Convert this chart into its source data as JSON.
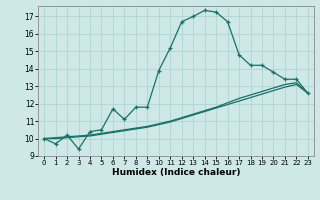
{
  "xlabel": "Humidex (Indice chaleur)",
  "background_color": "#cde8e6",
  "grid_color": "#b0d4d0",
  "line_color": "#1a7068",
  "xlim": [
    -0.5,
    23.5
  ],
  "ylim": [
    9,
    17.6
  ],
  "xticks": [
    0,
    1,
    2,
    3,
    4,
    5,
    6,
    7,
    8,
    9,
    10,
    11,
    12,
    13,
    14,
    15,
    16,
    17,
    18,
    19,
    20,
    21,
    22,
    23
  ],
  "yticks": [
    9,
    10,
    11,
    12,
    13,
    14,
    15,
    16,
    17
  ],
  "line1_x": [
    0,
    1,
    2,
    3,
    4,
    5,
    6,
    7,
    8,
    9,
    10,
    11,
    12,
    13,
    14,
    15,
    16,
    17,
    18,
    19,
    20,
    21,
    22,
    23
  ],
  "line1_y": [
    10.0,
    9.7,
    10.2,
    9.4,
    10.4,
    10.5,
    11.7,
    11.1,
    11.8,
    11.8,
    13.9,
    15.2,
    16.7,
    17.0,
    17.35,
    17.25,
    16.7,
    14.8,
    14.2,
    14.2,
    13.8,
    13.4,
    13.4,
    12.6
  ],
  "line2_x": [
    0,
    1,
    2,
    3,
    4,
    5,
    6,
    7,
    8,
    9,
    10,
    11,
    12,
    13,
    14,
    15,
    16,
    17,
    18,
    19,
    20,
    21,
    22,
    23
  ],
  "line2_y": [
    10.0,
    10.05,
    10.1,
    10.15,
    10.2,
    10.3,
    10.4,
    10.5,
    10.6,
    10.7,
    10.85,
    11.0,
    11.2,
    11.4,
    11.6,
    11.8,
    12.05,
    12.3,
    12.5,
    12.7,
    12.9,
    13.1,
    13.2,
    12.6
  ],
  "line3_x": [
    0,
    1,
    2,
    3,
    4,
    5,
    6,
    7,
    8,
    9,
    10,
    11,
    12,
    13,
    14,
    15,
    16,
    17,
    18,
    19,
    20,
    21,
    22,
    23
  ],
  "line3_y": [
    10.0,
    10.0,
    10.05,
    10.1,
    10.15,
    10.25,
    10.35,
    10.45,
    10.55,
    10.65,
    10.8,
    10.95,
    11.15,
    11.35,
    11.55,
    11.75,
    11.95,
    12.15,
    12.35,
    12.55,
    12.75,
    12.95,
    13.1,
    12.6
  ]
}
